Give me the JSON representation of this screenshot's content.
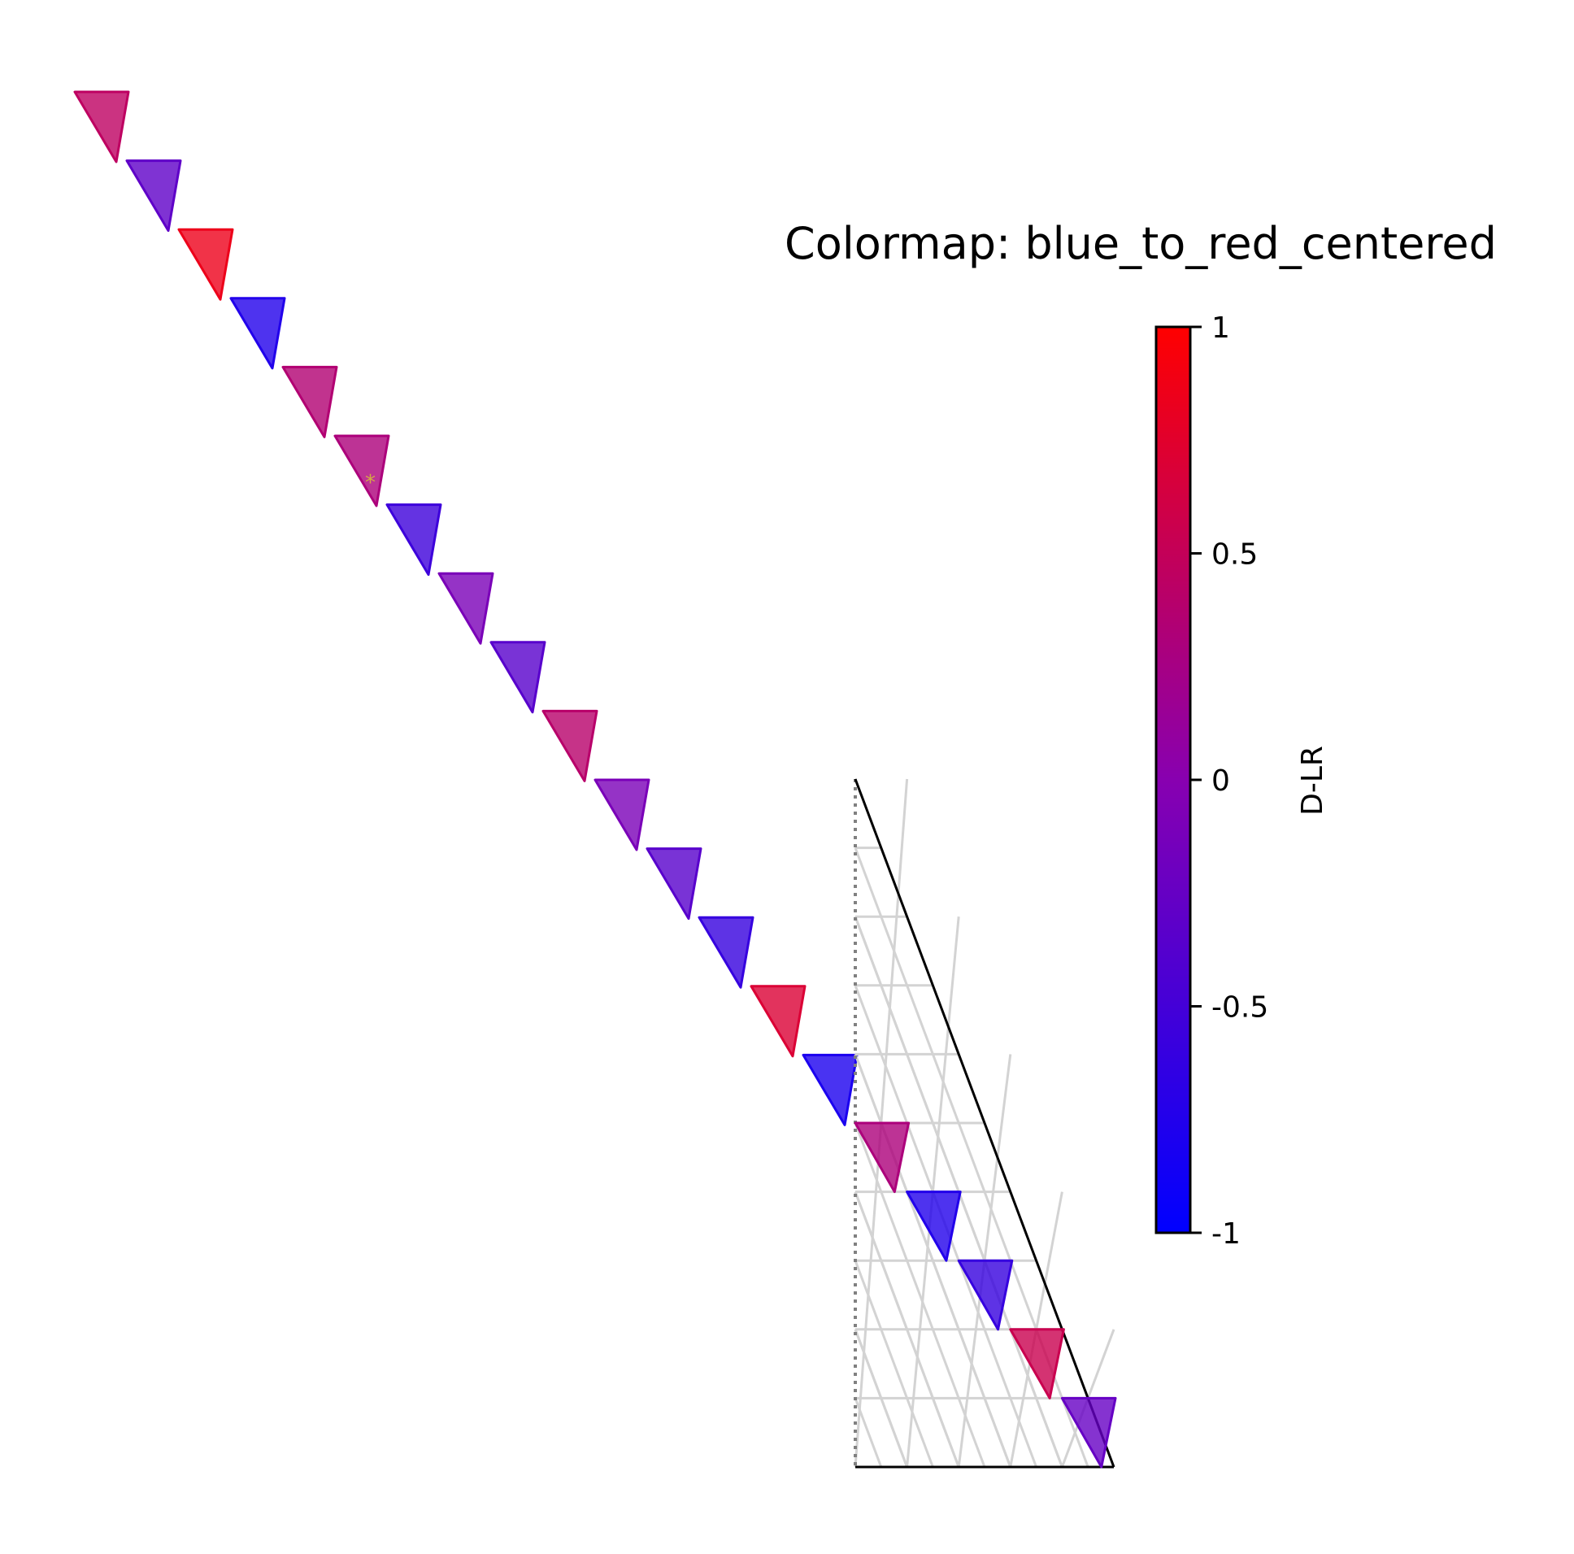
{
  "chart_data": {
    "type": "heatmap",
    "title": "Colormap: blue_to_red_centered",
    "colorbar": {
      "label": "D-LR",
      "ticks": [
        1,
        0.5,
        0,
        -0.5,
        -1
      ],
      "tick_labels": [
        "1",
        "0.5",
        "0",
        "-0.5",
        "-1"
      ],
      "range": [
        -1,
        1
      ],
      "colors": {
        "low": "#0000ff",
        "mid": "#8800b0",
        "high": "#ff0000"
      }
    },
    "diagonal_values": [
      0.45,
      -0.3,
      0.85,
      -0.75,
      0.35,
      0.3,
      -0.55,
      -0.1,
      -0.35,
      0.4,
      -0.1,
      -0.35,
      -0.6,
      0.7,
      -0.8
    ],
    "triangle_values": [
      0.3,
      -0.75,
      -0.6,
      0.55,
      -0.25
    ],
    "triangle_grid_rows": 10,
    "star_marker_index": 5,
    "star_color": "#d4aa44",
    "grid_color": "#d3d3d3",
    "edge_color": "#000000"
  }
}
